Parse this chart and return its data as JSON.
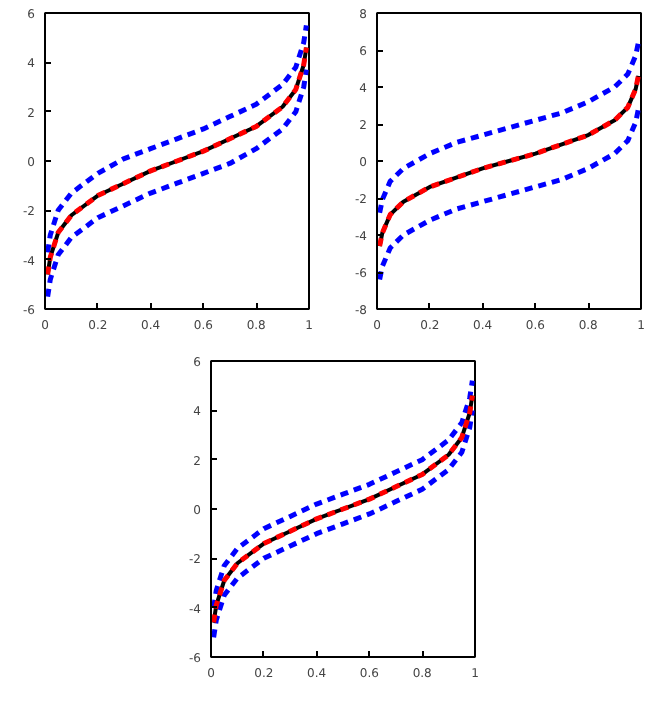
{
  "chart_data": [
    {
      "type": "line",
      "x": [
        0.01,
        0.02,
        0.05,
        0.1,
        0.2,
        0.3,
        0.4,
        0.5,
        0.6,
        0.7,
        0.8,
        0.9,
        0.95,
        0.98,
        0.99
      ],
      "xlim": [
        0,
        1
      ],
      "xticks": [
        0,
        0.2,
        0.4,
        0.6,
        0.8,
        1
      ],
      "ylim": [
        -6,
        6
      ],
      "yticks": [
        -6,
        -4,
        -2,
        0,
        2,
        4,
        6
      ],
      "grid": false,
      "series": [
        {
          "color": "#0000ff",
          "line_style": "dashed",
          "values": [
            -3.7,
            -3.0,
            -2.0,
            -1.3,
            -0.5,
            0.1,
            0.5,
            0.9,
            1.3,
            1.8,
            2.3,
            3.1,
            3.8,
            4.8,
            5.5
          ]
        },
        {
          "color": "#0000ff",
          "line_style": "dashed",
          "values": [
            -5.5,
            -4.8,
            -3.8,
            -3.1,
            -2.3,
            -1.8,
            -1.3,
            -0.9,
            -0.5,
            -0.1,
            0.5,
            1.3,
            2.0,
            3.0,
            3.7
          ]
        },
        {
          "color": "#000000",
          "line_style": "solid",
          "values": [
            -4.6,
            -3.9,
            -2.9,
            -2.2,
            -1.4,
            -0.9,
            -0.4,
            0,
            0.4,
            0.9,
            1.4,
            2.2,
            2.9,
            3.9,
            4.6
          ]
        },
        {
          "color": "#ff0000",
          "line_style": "dashed",
          "values": [
            -4.6,
            -3.9,
            -2.9,
            -2.2,
            -1.4,
            -0.9,
            -0.4,
            0,
            0.4,
            0.9,
            1.4,
            2.2,
            2.9,
            3.9,
            4.6
          ]
        }
      ]
    },
    {
      "type": "line",
      "x": [
        0.01,
        0.02,
        0.05,
        0.1,
        0.2,
        0.3,
        0.4,
        0.5,
        0.6,
        0.7,
        0.8,
        0.9,
        0.95,
        0.98,
        0.99
      ],
      "xlim": [
        0,
        1
      ],
      "xticks": [
        0,
        0.2,
        0.4,
        0.6,
        0.8,
        1
      ],
      "ylim": [
        -8,
        8
      ],
      "yticks": [
        -8,
        -6,
        -4,
        -2,
        0,
        2,
        4,
        6,
        8
      ],
      "grid": false,
      "series": [
        {
          "color": "#0000ff",
          "line_style": "dashed",
          "values": [
            -2.8,
            -2.1,
            -1.1,
            -0.4,
            0.4,
            1.0,
            1.4,
            1.8,
            2.2,
            2.6,
            3.2,
            4.0,
            4.7,
            5.7,
            6.4
          ]
        },
        {
          "color": "#0000ff",
          "line_style": "dashed",
          "values": [
            -6.4,
            -5.7,
            -4.7,
            -4.0,
            -3.2,
            -2.6,
            -2.2,
            -1.8,
            -1.4,
            -1.0,
            -0.4,
            0.4,
            1.1,
            2.1,
            2.8
          ]
        },
        {
          "color": "#000000",
          "line_style": "solid",
          "values": [
            -4.6,
            -3.9,
            -2.9,
            -2.2,
            -1.4,
            -0.9,
            -0.4,
            0,
            0.4,
            0.9,
            1.4,
            2.2,
            2.9,
            3.9,
            4.6
          ]
        },
        {
          "color": "#ff0000",
          "line_style": "dashed",
          "values": [
            -4.6,
            -3.9,
            -2.9,
            -2.2,
            -1.4,
            -0.9,
            -0.4,
            0,
            0.4,
            0.9,
            1.4,
            2.2,
            2.9,
            3.9,
            4.6
          ]
        }
      ]
    },
    {
      "type": "line",
      "x": [
        0.01,
        0.02,
        0.05,
        0.1,
        0.2,
        0.3,
        0.4,
        0.5,
        0.6,
        0.7,
        0.8,
        0.9,
        0.95,
        0.98,
        0.99
      ],
      "xlim": [
        0,
        1
      ],
      "xticks": [
        0,
        0.2,
        0.4,
        0.6,
        0.8,
        1
      ],
      "ylim": [
        -6,
        6
      ],
      "yticks": [
        -6,
        -4,
        -2,
        0,
        2,
        4,
        6
      ],
      "grid": false,
      "series": [
        {
          "color": "#0000ff",
          "line_style": "dashed",
          "values": [
            -4.0,
            -3.3,
            -2.3,
            -1.6,
            -0.8,
            -0.3,
            0.2,
            0.6,
            1.0,
            1.5,
            2.0,
            2.8,
            3.5,
            4.5,
            5.2
          ]
        },
        {
          "color": "#0000ff",
          "line_style": "dashed",
          "values": [
            -5.2,
            -4.5,
            -3.5,
            -2.8,
            -2.0,
            -1.5,
            -1.0,
            -0.6,
            -0.2,
            0.3,
            0.8,
            1.6,
            2.3,
            3.3,
            4.0
          ]
        },
        {
          "color": "#000000",
          "line_style": "solid",
          "values": [
            -4.6,
            -3.9,
            -2.9,
            -2.2,
            -1.4,
            -0.9,
            -0.4,
            0,
            0.4,
            0.9,
            1.4,
            2.2,
            2.9,
            3.9,
            4.6
          ]
        },
        {
          "color": "#ff0000",
          "line_style": "dashed",
          "values": [
            -4.6,
            -3.9,
            -2.9,
            -2.2,
            -1.4,
            -0.9,
            -0.4,
            0,
            0.4,
            0.9,
            1.4,
            2.2,
            2.9,
            3.9,
            4.6
          ]
        }
      ]
    }
  ]
}
